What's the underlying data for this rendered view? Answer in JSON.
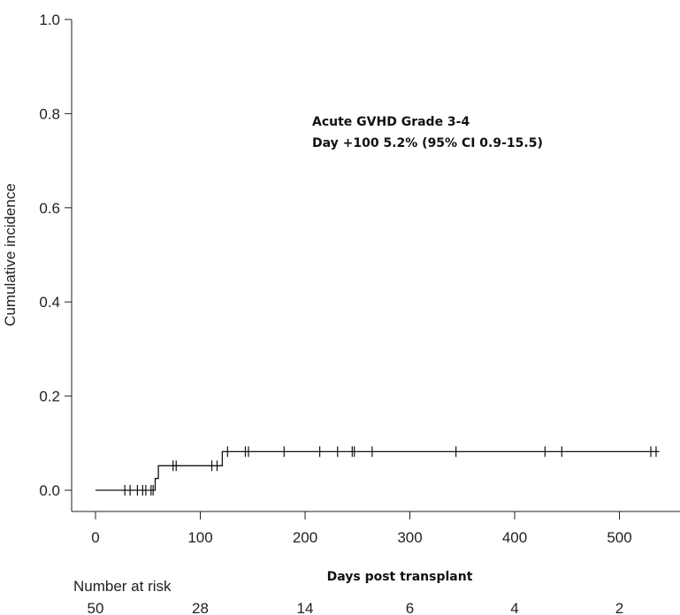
{
  "chart_data": {
    "type": "line",
    "ylabel": "Cumulative incidence",
    "xlabel": "Days post transplant",
    "xlim": [
      0,
      550
    ],
    "ylim": [
      0,
      1.0
    ],
    "x_ticks": [
      0,
      100,
      200,
      300,
      400,
      500
    ],
    "y_ticks": [
      "0.0",
      "0.2",
      "0.4",
      "0.6",
      "0.8",
      "1.0"
    ],
    "grid": false,
    "annotation": [
      "Acute GVHD Grade 3-4",
      "Day +100 5.2% (95% CI 0.9-15.5)"
    ],
    "series": [
      {
        "steps": [
          {
            "x": 0,
            "y": 0.0
          },
          {
            "x": 57,
            "y": 0.0
          },
          {
            "x": 57,
            "y": 0.025
          },
          {
            "x": 60,
            "y": 0.025
          },
          {
            "x": 60,
            "y": 0.052
          },
          {
            "x": 121,
            "y": 0.052
          },
          {
            "x": 121,
            "y": 0.082
          },
          {
            "x": 538,
            "y": 0.082
          }
        ],
        "censor_marks": [
          {
            "x": 28,
            "y": 0.0
          },
          {
            "x": 33,
            "y": 0.0
          },
          {
            "x": 40,
            "y": 0.0
          },
          {
            "x": 45,
            "y": 0.0
          },
          {
            "x": 48,
            "y": 0.0
          },
          {
            "x": 53,
            "y": 0.0
          },
          {
            "x": 55,
            "y": 0.0
          },
          {
            "x": 74,
            "y": 0.052
          },
          {
            "x": 77,
            "y": 0.052
          },
          {
            "x": 111,
            "y": 0.052
          },
          {
            "x": 116,
            "y": 0.052
          },
          {
            "x": 126,
            "y": 0.082
          },
          {
            "x": 143,
            "y": 0.082
          },
          {
            "x": 146,
            "y": 0.082
          },
          {
            "x": 180,
            "y": 0.082
          },
          {
            "x": 214,
            "y": 0.082
          },
          {
            "x": 231,
            "y": 0.082
          },
          {
            "x": 245,
            "y": 0.082
          },
          {
            "x": 247,
            "y": 0.082
          },
          {
            "x": 264,
            "y": 0.082
          },
          {
            "x": 344,
            "y": 0.082
          },
          {
            "x": 429,
            "y": 0.082
          },
          {
            "x": 445,
            "y": 0.082
          },
          {
            "x": 530,
            "y": 0.082
          },
          {
            "x": 535,
            "y": 0.082
          }
        ]
      }
    ],
    "number_at_risk": {
      "label": "Number at risk",
      "values": [
        {
          "x": 0,
          "n": "50"
        },
        {
          "x": 100,
          "n": "28"
        },
        {
          "x": 200,
          "n": "14"
        },
        {
          "x": 300,
          "n": "6"
        },
        {
          "x": 400,
          "n": "4"
        },
        {
          "x": 500,
          "n": "2"
        }
      ]
    }
  }
}
